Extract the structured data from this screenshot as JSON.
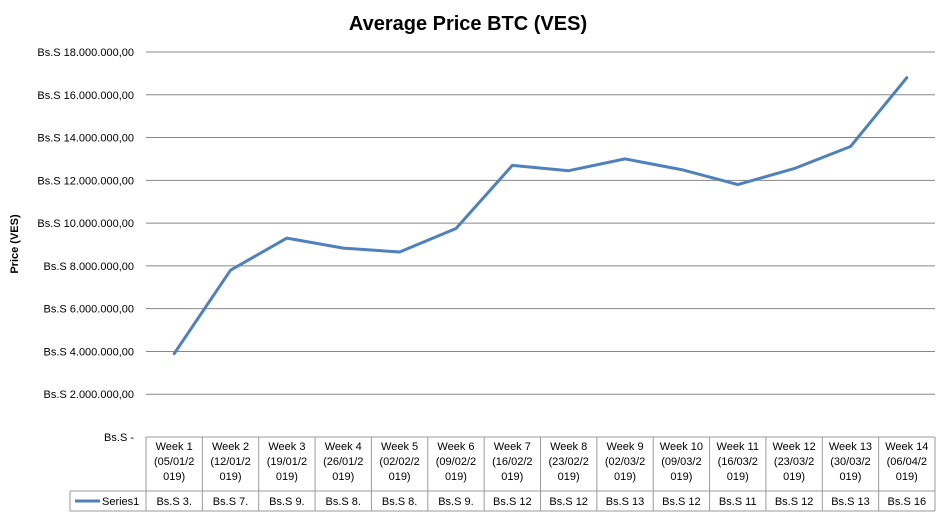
{
  "chart_data": {
    "type": "line",
    "title": "Average Price BTC (VES)",
    "ylabel": "Price (VES)",
    "xlabel": "",
    "ylim": [
      0,
      18000000
    ],
    "ytick_values": [
      0,
      2000000,
      4000000,
      6000000,
      8000000,
      10000000,
      12000000,
      14000000,
      16000000,
      18000000
    ],
    "ytick_labels": [
      "Bs.S -",
      "Bs.S 2.000.000,00",
      "Bs.S 4.000.000,00",
      "Bs.S 6.000.000,00",
      "Bs.S 8.000.000,00",
      "Bs.S 10.000.000,00",
      "Bs.S 12.000.000,00",
      "Bs.S 14.000.000,00",
      "Bs.S 16.000.000,00",
      "Bs.S 18.000.000,00"
    ],
    "categories": [
      [
        "Week 1",
        "(05/01/2",
        "019)"
      ],
      [
        "Week 2",
        "(12/01/2",
        "019)"
      ],
      [
        "Week 3",
        "(19/01/2",
        "019)"
      ],
      [
        "Week 4",
        "(26/01/2",
        "019)"
      ],
      [
        "Week 5",
        "(02/02/2",
        "019)"
      ],
      [
        "Week 6",
        "(09/02/2",
        "019)"
      ],
      [
        "Week 7",
        "(16/02/2",
        "019)"
      ],
      [
        "Week 8",
        "(23/02/2",
        "019)"
      ],
      [
        "Week 9",
        "(02/03/2",
        "019)"
      ],
      [
        "Week 10",
        "(09/03/2",
        "019)"
      ],
      [
        "Week 11",
        "(16/03/2",
        "019)"
      ],
      [
        "Week 12",
        "(23/03/2",
        "019)"
      ],
      [
        "Week 13",
        "(30/03/2",
        "019)"
      ],
      [
        "Week 14",
        "(06/04/2",
        "019)"
      ]
    ],
    "series": [
      {
        "name": "Series1",
        "color": "#4f81bd",
        "values": [
          3900000,
          7800000,
          9300000,
          8830000,
          8650000,
          9750000,
          12700000,
          12450000,
          13000000,
          12500000,
          11800000,
          12550000,
          13580000,
          16800000
        ],
        "table_labels": [
          "Bs.S 3.",
          "Bs.S 7.",
          "Bs.S 9.",
          "Bs.S 8.",
          "Bs.S 8.",
          "Bs.S 9.",
          "Bs.S 12",
          "Bs.S 12",
          "Bs.S 13",
          "Bs.S 12",
          "Bs.S 11",
          "Bs.S 12",
          "Bs.S 13",
          "Bs.S 16"
        ]
      }
    ],
    "grid": true,
    "legend": "data-table"
  }
}
